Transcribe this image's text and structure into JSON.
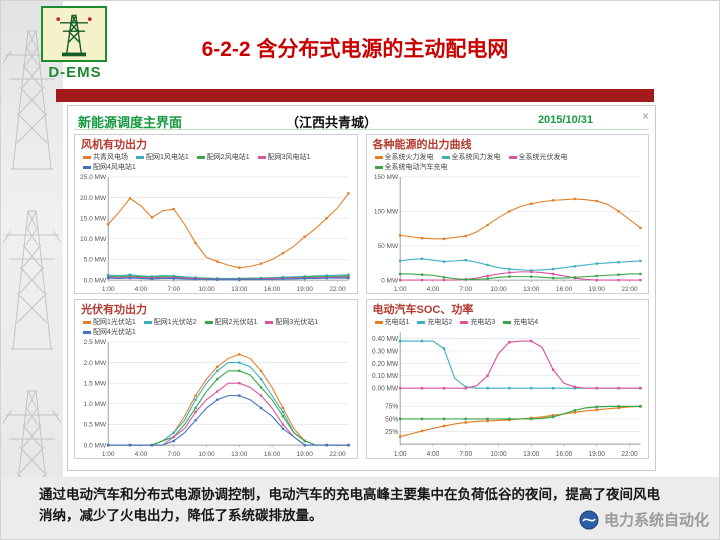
{
  "header": {
    "logo_text": "D-EMS",
    "title": "6-2-2 含分布式电源的主动配电网"
  },
  "ems": {
    "title": "新能源调度主界面",
    "subtitle": "（江西共青城）",
    "date": "2015/10/31",
    "close_label": "×"
  },
  "caption": {
    "text": "通过电动汽车和分布式电源协调控制，电动汽车的充电高峰主要集中在负荷低谷的夜间，提高了夜间风电消纳，减少了火电出力，降低了系统碳排放量。"
  },
  "watermark": {
    "text": "电力系统自动化"
  },
  "colors": {
    "title_red": "#c90000",
    "bar_red": "#a21a1a",
    "ems_green": "#169a3f",
    "chart_title_red": "#b23a2f"
  },
  "chart_data": [
    {
      "type": "line",
      "title": "风机有功出力",
      "x": [
        1,
        2,
        3,
        4,
        5,
        6,
        7,
        8,
        9,
        10,
        11,
        12,
        13,
        14,
        15,
        16,
        17,
        18,
        19,
        20,
        21,
        22,
        23
      ],
      "xticks": [
        {
          "value": 1,
          "label": "1:00"
        },
        {
          "value": 4,
          "label": "4:00"
        },
        {
          "value": 7,
          "label": "7:00"
        },
        {
          "value": 10,
          "label": "10:00"
        },
        {
          "value": 13,
          "label": "13:00"
        },
        {
          "value": 16,
          "label": "16:00"
        },
        {
          "value": 19,
          "label": "19:00"
        },
        {
          "value": 22,
          "label": "22:00"
        }
      ],
      "axes": {
        "default": {
          "min": 0,
          "max": 25,
          "band": [
            0,
            1
          ]
        }
      },
      "yticks": [
        {
          "value": 25,
          "label": "25.0 MW"
        },
        {
          "value": 20,
          "label": "20.0 MW"
        },
        {
          "value": 15,
          "label": "15.0 MW"
        },
        {
          "value": 10,
          "label": "10.0 MW"
        },
        {
          "value": 5,
          "label": "5.0 MW"
        },
        {
          "value": 0,
          "label": "0.0 MW"
        }
      ],
      "series": [
        {
          "name": "共青风电场",
          "color": "#e2802a",
          "values": [
            13.5,
            16.5,
            19.8,
            18,
            15.2,
            16.8,
            17.2,
            13.5,
            9,
            5.5,
            4.5,
            3.6,
            3,
            3.3,
            4,
            5,
            6.5,
            8.2,
            10.5,
            12.5,
            15,
            17.5,
            21
          ]
        },
        {
          "name": "配网1风电站1",
          "color": "#3faec1",
          "values": [
            1.2,
            1.1,
            1.3,
            1.0,
            0.9,
            1.1,
            1.0,
            0.8,
            0.6,
            0.5,
            0.4,
            0.4,
            0.4,
            0.5,
            0.5,
            0.6,
            0.7,
            0.8,
            0.9,
            1.0,
            1.1,
            1.2,
            1.3
          ]
        },
        {
          "name": "配网2风电站1",
          "color": "#3aa648",
          "values": [
            0.9,
            0.8,
            1.0,
            0.8,
            0.7,
            0.8,
            0.8,
            0.6,
            0.5,
            0.4,
            0.3,
            0.3,
            0.3,
            0.4,
            0.4,
            0.5,
            0.5,
            0.6,
            0.7,
            0.8,
            0.8,
            0.9,
            1.0
          ]
        },
        {
          "name": "配网3风电站1",
          "color": "#d9559c",
          "values": [
            0.7,
            0.6,
            0.7,
            0.6,
            0.5,
            0.6,
            0.6,
            0.5,
            0.4,
            0.3,
            0.2,
            0.2,
            0.2,
            0.3,
            0.3,
            0.4,
            0.4,
            0.5,
            0.5,
            0.6,
            0.6,
            0.7,
            0.7
          ]
        },
        {
          "name": "配网4风电站1",
          "color": "#4472c4",
          "values": [
            0.5,
            0.4,
            0.5,
            0.4,
            0.3,
            0.4,
            0.4,
            0.3,
            0.2,
            0.2,
            0.1,
            0.1,
            0.1,
            0.2,
            0.2,
            0.2,
            0.3,
            0.3,
            0.4,
            0.4,
            0.5,
            0.5,
            0.5
          ]
        }
      ]
    },
    {
      "type": "line",
      "title": "各种能源的出力曲线",
      "x": [
        1,
        2,
        3,
        4,
        5,
        6,
        7,
        8,
        9,
        10,
        11,
        12,
        13,
        14,
        15,
        16,
        17,
        18,
        19,
        20,
        21,
        22,
        23
      ],
      "xticks": [
        {
          "value": 1,
          "label": "1:00"
        },
        {
          "value": 4,
          "label": "4:00"
        },
        {
          "value": 7,
          "label": "7:00"
        },
        {
          "value": 10,
          "label": "10:00"
        },
        {
          "value": 13,
          "label": "13:00"
        },
        {
          "value": 16,
          "label": "16:00"
        },
        {
          "value": 19,
          "label": "19:00"
        },
        {
          "value": 22,
          "label": "22:00"
        }
      ],
      "axes": {
        "default": {
          "min": 0,
          "max": 150,
          "band": [
            0,
            1
          ]
        }
      },
      "yticks": [
        {
          "value": 150,
          "label": "150 MW"
        },
        {
          "value": 100,
          "label": "100 MW"
        },
        {
          "value": 50,
          "label": "50 MW"
        },
        {
          "value": 0,
          "label": "0 MW"
        }
      ],
      "series": [
        {
          "name": "全系统火力发电",
          "color": "#e2802a",
          "values": [
            65,
            63,
            61,
            60,
            60,
            62,
            64,
            70,
            80,
            91,
            100,
            107,
            111,
            114,
            116,
            117,
            118,
            117,
            115,
            110,
            100,
            88,
            76
          ]
        },
        {
          "name": "全系统风力发电",
          "color": "#3faec1",
          "values": [
            28,
            30,
            31,
            29,
            27,
            28,
            29,
            26,
            22,
            18,
            16,
            15,
            14,
            15,
            16,
            18,
            20,
            22,
            24,
            25,
            26,
            27,
            28
          ]
        },
        {
          "name": "全系统光伏发电",
          "color": "#d9559c",
          "values": [
            0,
            0,
            0,
            0,
            0,
            0,
            1,
            3,
            6,
            9,
            11,
            12,
            12,
            11,
            9,
            6,
            3,
            1,
            0,
            0,
            0,
            0,
            0
          ]
        },
        {
          "name": "全系统电动汽车充电",
          "color": "#3aa648",
          "values": [
            9,
            9,
            8,
            7,
            4,
            2,
            1,
            1,
            2,
            4,
            5,
            5,
            5,
            4,
            3,
            3,
            4,
            5,
            6,
            7,
            8,
            9,
            9
          ]
        }
      ]
    },
    {
      "type": "line",
      "title": "光伏有功出力",
      "x": [
        1,
        2,
        3,
        4,
        5,
        6,
        7,
        8,
        9,
        10,
        11,
        12,
        13,
        14,
        15,
        16,
        17,
        18,
        19,
        20,
        21,
        22,
        23
      ],
      "xticks": [
        {
          "value": 1,
          "label": "1:00"
        },
        {
          "value": 4,
          "label": "4:00"
        },
        {
          "value": 7,
          "label": "7:00"
        },
        {
          "value": 10,
          "label": "10:00"
        },
        {
          "value": 13,
          "label": "13:00"
        },
        {
          "value": 16,
          "label": "16:00"
        },
        {
          "value": 19,
          "label": "19:00"
        },
        {
          "value": 22,
          "label": "22:00"
        }
      ],
      "axes": {
        "default": {
          "min": 0,
          "max": 2.5,
          "band": [
            0,
            1
          ]
        }
      },
      "yticks": [
        {
          "value": 2.5,
          "label": "2.5 MW"
        },
        {
          "value": 2.0,
          "label": "2.0 MW"
        },
        {
          "value": 1.5,
          "label": "1.5 MW"
        },
        {
          "value": 1.0,
          "label": "1.0 MW"
        },
        {
          "value": 0.5,
          "label": "0.5 MW"
        },
        {
          "value": 0,
          "label": "0.0 MW"
        }
      ],
      "series": [
        {
          "name": "配网1光伏站1",
          "color": "#e2802a",
          "values": [
            0,
            0,
            0,
            0,
            0,
            0.1,
            0.3,
            0.7,
            1.2,
            1.6,
            1.9,
            2.1,
            2.2,
            2.1,
            1.8,
            1.4,
            0.9,
            0.4,
            0.1,
            0,
            0,
            0,
            0
          ]
        },
        {
          "name": "配网1光伏站2",
          "color": "#3faec1",
          "values": [
            0,
            0,
            0,
            0,
            0,
            0.1,
            0.3,
            0.6,
            1.1,
            1.5,
            1.8,
            2.0,
            2.0,
            1.9,
            1.6,
            1.2,
            0.8,
            0.3,
            0.1,
            0,
            0,
            0,
            0
          ]
        },
        {
          "name": "配网2光伏站1",
          "color": "#3aa648",
          "values": [
            0,
            0,
            0,
            0,
            0,
            0.1,
            0.2,
            0.5,
            0.9,
            1.3,
            1.6,
            1.8,
            1.8,
            1.7,
            1.4,
            1.1,
            0.7,
            0.3,
            0.1,
            0,
            0,
            0,
            0
          ]
        },
        {
          "name": "配网3光伏站1",
          "color": "#d9559c",
          "values": [
            0,
            0,
            0,
            0,
            0,
            0,
            0.2,
            0.4,
            0.8,
            1.1,
            1.3,
            1.5,
            1.5,
            1.4,
            1.2,
            0.9,
            0.5,
            0.2,
            0,
            0,
            0,
            0,
            0
          ]
        },
        {
          "name": "配网4光伏站1",
          "color": "#4472c4",
          "values": [
            0,
            0,
            0,
            0,
            0,
            0,
            0.1,
            0.3,
            0.6,
            0.9,
            1.1,
            1.2,
            1.2,
            1.1,
            0.9,
            0.7,
            0.4,
            0.2,
            0,
            0,
            0,
            0,
            0
          ]
        }
      ]
    },
    {
      "type": "line",
      "title": "电动汽车SOC、功率",
      "x": [
        1,
        2,
        3,
        4,
        5,
        6,
        7,
        8,
        9,
        10,
        11,
        12,
        13,
        14,
        15,
        16,
        17,
        18,
        19,
        20,
        21,
        22,
        23
      ],
      "xticks": [
        {
          "value": 1,
          "label": "1:00"
        },
        {
          "value": 4,
          "label": "4:00"
        },
        {
          "value": 7,
          "label": "7:00"
        },
        {
          "value": 10,
          "label": "10:00"
        },
        {
          "value": 13,
          "label": "13:00"
        },
        {
          "value": 16,
          "label": "16:00"
        },
        {
          "value": 19,
          "label": "19:00"
        },
        {
          "value": 22,
          "label": "22:00"
        }
      ],
      "axes": {
        "default": {
          "min": 0,
          "max": 1,
          "band": [
            0,
            1
          ]
        },
        "power": {
          "min": 0,
          "max": 0.45,
          "band": [
            0.5,
            1
          ]
        },
        "soc": {
          "min": 0,
          "max": 100,
          "band": [
            0,
            0.45
          ]
        }
      },
      "yticks": [
        {
          "axis": "power",
          "value": 0.4,
          "label": "0.40 MW"
        },
        {
          "axis": "power",
          "value": 0.3,
          "label": "0.30 MW"
        },
        {
          "axis": "power",
          "value": 0.2,
          "label": "0.20 MW"
        },
        {
          "axis": "power",
          "value": 0.1,
          "label": "0.10 MW"
        },
        {
          "axis": "power",
          "value": 0.0,
          "label": "0.00 MW"
        },
        {
          "axis": "soc",
          "value": 75,
          "label": "75%"
        },
        {
          "axis": "soc",
          "value": 50,
          "label": "50%"
        },
        {
          "axis": "soc",
          "value": 25,
          "label": "25%"
        }
      ],
      "series": [
        {
          "name": "充电站1",
          "axis": "soc",
          "color": "#e2802a",
          "values": [
            15,
            20,
            26,
            31,
            36,
            40,
            43,
            45,
            46,
            47,
            48,
            50,
            52,
            54,
            57,
            60,
            63,
            66,
            68,
            70,
            72,
            74,
            75
          ]
        },
        {
          "name": "充电站2",
          "axis": "power",
          "color": "#3faec1",
          "values": [
            0.38,
            0.38,
            0.38,
            0.38,
            0.32,
            0.08,
            0.01,
            0,
            0,
            0,
            0,
            0,
            0,
            0,
            0,
            0,
            0,
            0,
            0,
            0,
            0,
            0,
            0
          ]
        },
        {
          "name": "充电站3",
          "axis": "power",
          "color": "#d9559c",
          "values": [
            0,
            0,
            0,
            0,
            0,
            0,
            0,
            0.02,
            0.1,
            0.28,
            0.37,
            0.38,
            0.38,
            0.33,
            0.15,
            0.04,
            0.01,
            0,
            0,
            0,
            0,
            0,
            0
          ]
        },
        {
          "name": "充电站4",
          "axis": "soc",
          "color": "#3aa648",
          "values": [
            50,
            50,
            50,
            50,
            50,
            50,
            50,
            50,
            50,
            50,
            50,
            50,
            50,
            51,
            54,
            60,
            67,
            72,
            74,
            75,
            75,
            75,
            75
          ]
        }
      ]
    }
  ]
}
